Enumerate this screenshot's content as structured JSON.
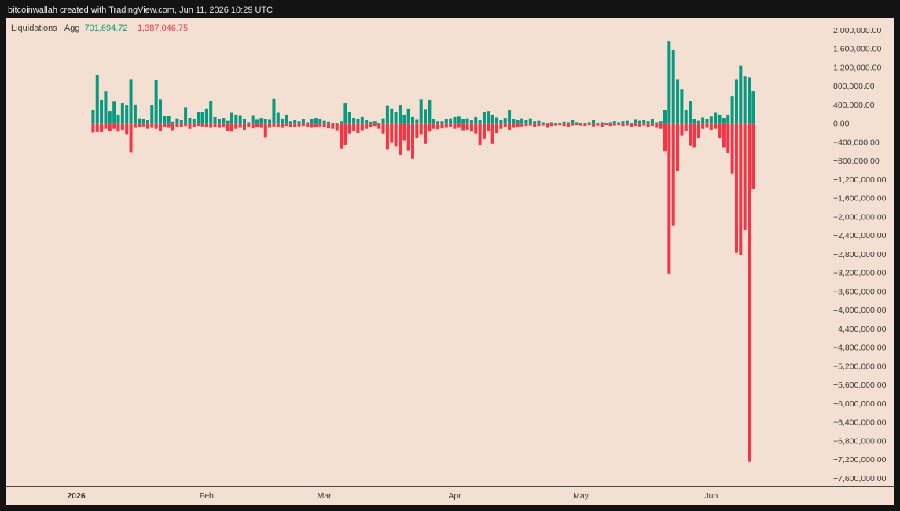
{
  "header": "bitcoinwallah created with TradingView.com, Jun 11, 2026 10:29 UTC",
  "chart_data": {
    "type": "bar",
    "title": "Liquidations · Agg",
    "categories": [
      "2026",
      null,
      null,
      null,
      null,
      null,
      null,
      null,
      null,
      null,
      null,
      null,
      null,
      null,
      null,
      null,
      null,
      null,
      null,
      null,
      null,
      null,
      null,
      null,
      null,
      null,
      null,
      null,
      null,
      null,
      null,
      "Feb",
      null,
      null,
      null,
      null,
      null,
      null,
      null,
      null,
      null,
      null,
      null,
      null,
      null,
      null,
      null,
      null,
      null,
      null,
      null,
      null,
      null,
      null,
      null,
      null,
      null,
      null,
      null,
      "Mar",
      null,
      null,
      null,
      null,
      null,
      null,
      null,
      null,
      null,
      null,
      null,
      null,
      null,
      null,
      null,
      null,
      null,
      null,
      null,
      null,
      null,
      null,
      null,
      null,
      null,
      null,
      null,
      null,
      null,
      null,
      "Apr",
      null,
      null,
      null,
      null,
      null,
      null,
      null,
      null,
      null,
      null,
      null,
      null,
      null,
      null,
      null,
      null,
      null,
      null,
      null,
      null,
      null,
      null,
      null,
      null,
      null,
      null,
      null,
      null,
      null,
      "May",
      null,
      null,
      null,
      null,
      null,
      null,
      null,
      null,
      null,
      null,
      null,
      null,
      null,
      null,
      null,
      null,
      null,
      null,
      null,
      null,
      null,
      null,
      null,
      null,
      null,
      null,
      null,
      null,
      null,
      null,
      "Jun",
      null,
      null,
      null,
      null,
      null,
      null,
      null,
      null,
      null,
      null
    ],
    "series": [
      {
        "color": "#089981",
        "values": [
          null,
          null,
          null,
          null,
          300000,
          1050000,
          520000,
          700000,
          280000,
          480000,
          200000,
          450000,
          400000,
          950000,
          420000,
          120000,
          100000,
          80000,
          400000,
          940000,
          530000,
          170000,
          170000,
          50000,
          120000,
          80000,
          360000,
          130000,
          100000,
          250000,
          260000,
          320000,
          500000,
          150000,
          110000,
          130000,
          70000,
          240000,
          200000,
          190000,
          100000,
          40000,
          190000,
          90000,
          130000,
          100000,
          90000,
          540000,
          240000,
          100000,
          200000,
          60000,
          80000,
          60000,
          100000,
          40000,
          100000,
          130000,
          100000,
          70000,
          50000,
          30000,
          20000,
          60000,
          450000,
          260000,
          130000,
          110000,
          150000,
          80000,
          50000,
          60000,
          20000,
          120000,
          390000,
          320000,
          250000,
          400000,
          200000,
          320000,
          150000,
          90000,
          530000,
          310000,
          520000,
          100000,
          60000,
          60000,
          110000,
          120000,
          150000,
          160000,
          100000,
          120000,
          80000,
          150000,
          80000,
          260000,
          280000,
          200000,
          140000,
          80000,
          130000,
          300000,
          100000,
          80000,
          120000,
          80000,
          120000,
          60000,
          70000,
          40000,
          20000,
          40000,
          20000,
          30000,
          50000,
          40000,
          80000,
          40000,
          30000,
          20000,
          40000,
          80000,
          30000,
          40000,
          30000,
          40000,
          60000,
          40000,
          60000,
          70000,
          30000,
          90000,
          70000,
          80000,
          60000,
          100000,
          40000,
          60000,
          300000,
          1780000,
          1580000,
          950000,
          750000,
          300000,
          500000,
          100000,
          70000,
          140000,
          100000,
          160000,
          240000,
          200000,
          130000,
          200000,
          600000,
          950000,
          1250000,
          1020000,
          1000000,
          701694.72
        ]
      },
      {
        "color": "#f23645",
        "values": [
          null,
          null,
          null,
          null,
          -180000,
          -170000,
          -170000,
          -100000,
          -140000,
          -100000,
          -160000,
          -120000,
          -230000,
          -600000,
          -80000,
          -60000,
          -50000,
          -100000,
          -80000,
          -100000,
          -150000,
          -60000,
          -80000,
          -130000,
          -60000,
          -70000,
          -40000,
          -100000,
          -60000,
          -40000,
          -50000,
          -60000,
          -80000,
          -60000,
          -80000,
          -70000,
          -150000,
          -160000,
          -100000,
          -80000,
          -120000,
          -60000,
          -90000,
          -70000,
          -80000,
          -280000,
          -80000,
          -50000,
          -60000,
          -80000,
          -40000,
          -60000,
          -60000,
          -50000,
          -40000,
          -60000,
          -80000,
          -70000,
          -50000,
          -60000,
          -90000,
          -100000,
          -130000,
          -520000,
          -450000,
          -200000,
          -150000,
          -190000,
          -130000,
          -100000,
          -60000,
          -40000,
          -100000,
          -200000,
          -550000,
          -400000,
          -480000,
          -660000,
          -350000,
          -570000,
          -740000,
          -300000,
          -230000,
          -420000,
          -160000,
          -100000,
          -110000,
          -90000,
          -80000,
          -60000,
          -100000,
          -80000,
          -130000,
          -120000,
          -160000,
          -200000,
          -460000,
          -320000,
          -150000,
          -420000,
          -190000,
          -100000,
          -70000,
          -120000,
          -80000,
          -60000,
          -50000,
          -40000,
          -30000,
          -60000,
          -40000,
          -30000,
          -80000,
          -40000,
          -30000,
          -20000,
          -40000,
          -60000,
          -30000,
          -20000,
          -30000,
          -40000,
          -20000,
          -50000,
          -30000,
          -60000,
          -20000,
          -40000,
          -30000,
          -20000,
          -40000,
          -30000,
          -60000,
          -40000,
          -50000,
          -30000,
          -60000,
          -40000,
          -80000,
          -100000,
          -580000,
          -3200000,
          -2170000,
          -1010000,
          -250000,
          -150000,
          -470000,
          -500000,
          -300000,
          -100000,
          -80000,
          -120000,
          -100000,
          -300000,
          -500000,
          -620000,
          -1060000,
          -2760000,
          -2810000,
          -2260000,
          -7240000,
          -1387046.75
        ]
      }
    ],
    "status_values": [
      {
        "value": 701694.72,
        "label": "701,694.72"
      },
      {
        "value": -1387046.75,
        "label": "−1,387,046.75"
      }
    ],
    "ylim": [
      -7750000,
      2270000
    ],
    "yticks": [
      {
        "value": 2000000,
        "label": "2,000,000.00"
      },
      {
        "value": 1600000,
        "label": "1,600,000.00"
      },
      {
        "value": 1200000,
        "label": "1,200,000.00"
      },
      {
        "value": 800000,
        "label": "800,000.00"
      },
      {
        "value": 400000,
        "label": "400,000.00"
      },
      {
        "value": 0,
        "label": "0.00"
      },
      {
        "value": -400000,
        "label": "−400,000.00"
      },
      {
        "value": -800000,
        "label": "−800,000.00"
      },
      {
        "value": -1200000,
        "label": "−1,200,000.00"
      },
      {
        "value": -1600000,
        "label": "−1,600,000.00"
      },
      {
        "value": -2000000,
        "label": "−2,000,000.00"
      },
      {
        "value": -2400000,
        "label": "−2,400,000.00"
      },
      {
        "value": -2800000,
        "label": "−2,800,000.00"
      },
      {
        "value": -3200000,
        "label": "−3,200,000.00"
      },
      {
        "value": -3600000,
        "label": "−3,600,000.00"
      },
      {
        "value": -4000000,
        "label": "−4,000,000.00"
      },
      {
        "value": -4400000,
        "label": "−4,400,000.00"
      },
      {
        "value": -4800000,
        "label": "−4,800,000.00"
      },
      {
        "value": -5200000,
        "label": "−5,200,000.00"
      },
      {
        "value": -5600000,
        "label": "−5,600,000.00"
      },
      {
        "value": -6000000,
        "label": "−6,000,000.00"
      },
      {
        "value": -6400000,
        "label": "−6,400,000.00"
      },
      {
        "value": -6800000,
        "label": "−6,800,000.00"
      },
      {
        "value": -7200000,
        "label": "−7,200,000.00"
      },
      {
        "value": -7600000,
        "label": "−7,600,000.00"
      }
    ],
    "grid": false
  }
}
